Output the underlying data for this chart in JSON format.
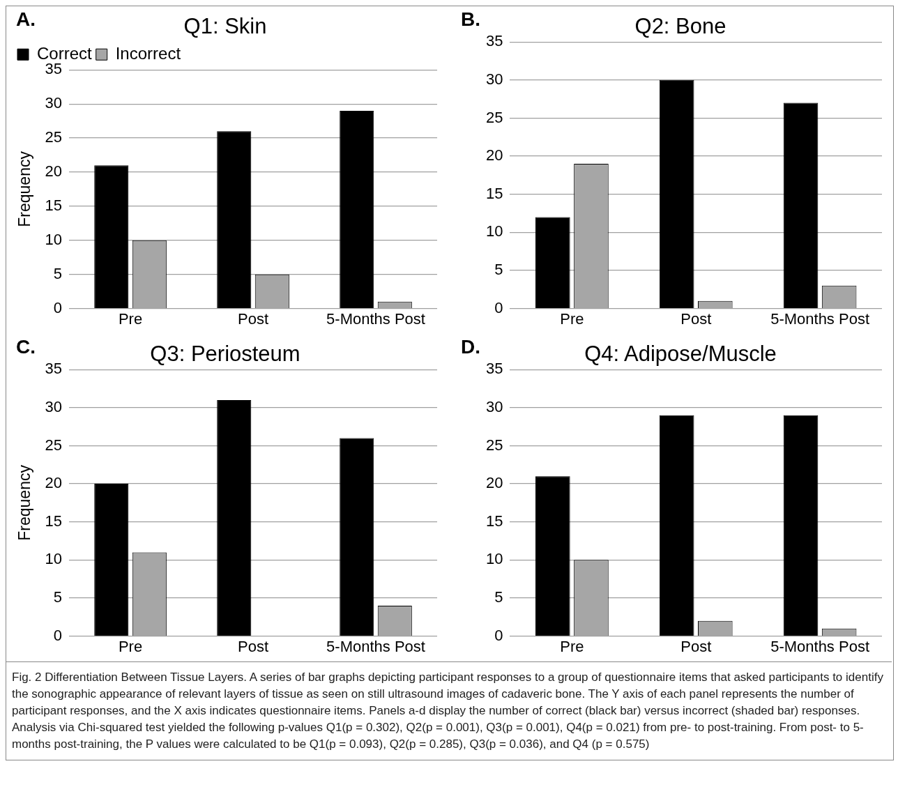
{
  "chart_data": [
    {
      "type": "bar",
      "title": "Q1: Skin",
      "ylabel": "Frequency",
      "annotations": [
        "A."
      ],
      "categories": [
        "Pre",
        "Post",
        "5-Months Post"
      ],
      "series": [
        {
          "name": "Correct",
          "color": "#000000",
          "values": [
            21,
            26,
            29
          ]
        },
        {
          "name": "Incorrect",
          "color": "#a6a6a6",
          "values": [
            10,
            5,
            1
          ]
        }
      ],
      "ylim": [
        0,
        35
      ],
      "yticks": [
        0,
        5,
        10,
        15,
        20,
        25,
        30,
        35
      ],
      "grid": "y",
      "legend": "top left"
    },
    {
      "type": "bar",
      "title": "Q2: Bone",
      "annotations": [
        "B."
      ],
      "categories": [
        "Pre",
        "Post",
        "5-Months Post"
      ],
      "series": [
        {
          "color": "#000000",
          "values": [
            12,
            30,
            27
          ]
        },
        {
          "color": "#a6a6a6",
          "values": [
            19,
            1,
            3
          ]
        }
      ],
      "ylim": [
        0,
        35
      ],
      "yticks": [
        0,
        5,
        10,
        15,
        20,
        25,
        30,
        35
      ],
      "grid": "y"
    },
    {
      "type": "bar",
      "title": "Q3: Periosteum",
      "ylabel": "Frequency",
      "annotations": [
        "C."
      ],
      "categories": [
        "Pre",
        "Post",
        "5-Months Post"
      ],
      "series": [
        {
          "color": "#000000",
          "values": [
            20,
            31,
            26
          ]
        },
        {
          "color": "#a6a6a6",
          "values": [
            11,
            0,
            4
          ]
        }
      ],
      "ylim": [
        0,
        35
      ],
      "yticks": [
        0,
        5,
        10,
        15,
        20,
        25,
        30,
        35
      ],
      "grid": "y"
    },
    {
      "type": "bar",
      "title": "Q4: Adipose/Muscle",
      "annotations": [
        "D."
      ],
      "categories": [
        "Pre",
        "Post",
        "5-Months Post"
      ],
      "series": [
        {
          "color": "#000000",
          "values": [
            21,
            29,
            29
          ]
        },
        {
          "color": "#a6a6a6",
          "values": [
            10,
            2,
            1
          ]
        }
      ],
      "ylim": [
        0,
        35
      ],
      "yticks": [
        0,
        5,
        10,
        15,
        20,
        25,
        30,
        35
      ],
      "grid": "y"
    },
    {
      "type": "other",
      "annotations": [
        "Fig. 2 Differentiation Between Tissue Layers. A series of bar graphs depicting participant responses to a group of questionnaire items that asked participants to identify the sonographic appearance of relevant layers of tissue as seen on still ultrasound images of cadaveric bone. The Y axis of each panel represents the number of participant responses, and the X axis indicates questionnaire items. Panels a-d display the number of correct (black bar) versus incorrect (shaded bar) responses. Analysis via Chi-squared test yielded the following p-values Q1(p = 0.302), Q2(p = 0.001), Q3(p = 0.001), Q4(p = 0.021) from pre- to post-training. From post- to 5-months post-training, the P values were calculated to be Q1(p = 0.093), Q2(p = 0.285), Q3(p = 0.036), and Q4 (p = 0.575)"
      ]
    }
  ]
}
